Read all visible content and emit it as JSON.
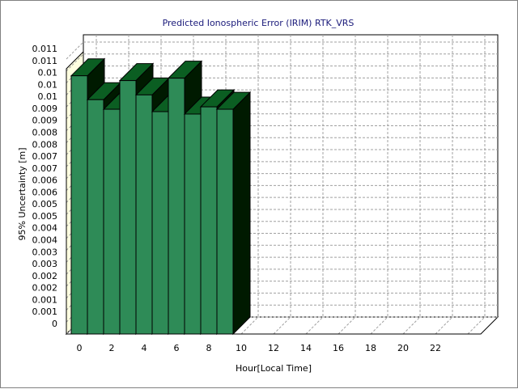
{
  "chart_data": {
    "type": "bar",
    "title": "Predicted Ionospheric Error (IRIM) RTK_VRS",
    "xlabel": "Hour[Local Time]",
    "ylabel": "95% Uncertainty [m]",
    "x_ticks": [
      "0",
      "2",
      "4",
      "6",
      "8",
      "10",
      "12",
      "14",
      "16",
      "18",
      "20",
      "22"
    ],
    "y_ticks": [
      "0",
      "0.001",
      "0.001",
      "0.002",
      "0.002",
      "0.003",
      "0.003",
      "0.004",
      "0.004",
      "0.005",
      "0.005",
      "0.006",
      "0.006",
      "0.007",
      "0.007",
      "0.008",
      "0.008",
      "0.009",
      "0.009",
      "0.01",
      "0.01",
      "0.01",
      "0.011",
      "0.011"
    ],
    "ylim": [
      0,
      0.0115
    ],
    "xlim": [
      0,
      24
    ],
    "hours": [
      0,
      1,
      2,
      3,
      4,
      5,
      6,
      7,
      8,
      9
    ],
    "values": [
      0.0108,
      0.0098,
      0.0094,
      0.0106,
      0.01,
      0.0093,
      0.0107,
      0.0092,
      0.0095,
      0.0094
    ],
    "grid": true,
    "bar_color": "#2e8b57",
    "bar_side_color": "#001a00",
    "wall_color": "#ffffe0"
  }
}
